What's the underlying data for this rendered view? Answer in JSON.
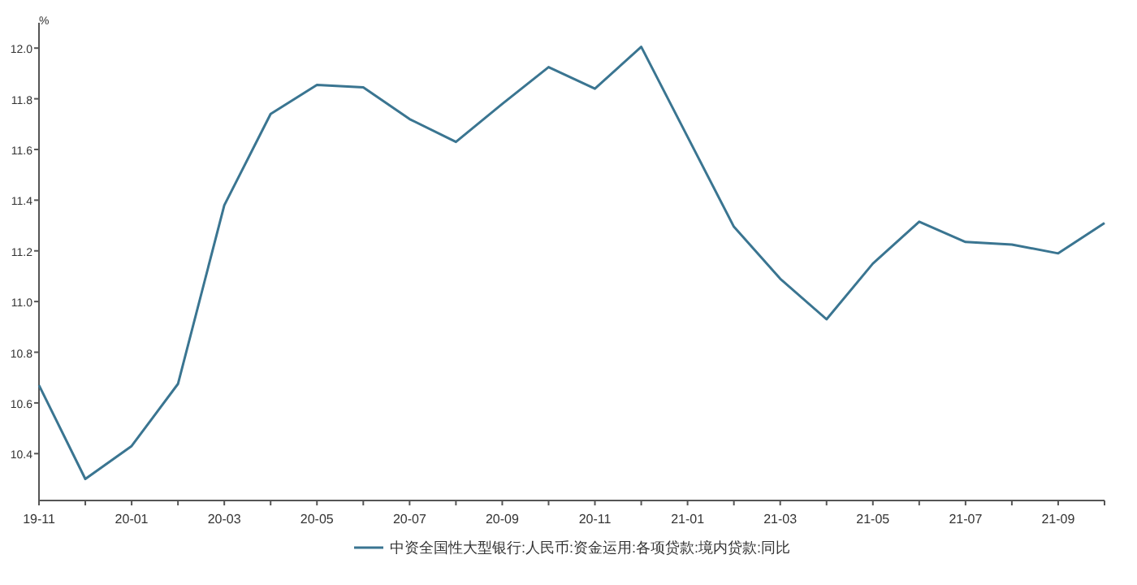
{
  "chart_data": {
    "type": "line",
    "ylabel": "%",
    "categories": [
      "19-11",
      null,
      "20-01",
      null,
      "20-03",
      null,
      "20-05",
      null,
      "20-07",
      null,
      "20-09",
      null,
      "20-11",
      null,
      "21-01",
      null,
      "21-03",
      null,
      "21-05",
      null,
      "21-07",
      null,
      "21-09",
      null
    ],
    "series": [
      {
        "name": "中资全国性大型银行:人民币:资金运用:各项贷款:境内贷款:同比",
        "color": "#3a7591",
        "values": [
          10.67,
          10.3,
          10.43,
          10.675,
          11.38,
          11.74,
          11.855,
          11.845,
          11.72,
          11.63,
          11.78,
          11.925,
          11.84,
          12.005,
          11.65,
          11.295,
          11.09,
          10.93,
          11.15,
          11.315,
          11.235,
          11.225,
          11.19,
          11.31
        ]
      }
    ],
    "ylim": [
      10.215,
      12.1
    ],
    "yticks": [
      10.4,
      10.6,
      10.8,
      {
        "value": 11,
        "label": "11.0"
      },
      11.2,
      11.4,
      11.6,
      11.8,
      {
        "value": 12,
        "label": "12.0"
      }
    ],
    "legend": "bottom",
    "grid": false,
    "marker": "none",
    "line_style": "solid"
  }
}
